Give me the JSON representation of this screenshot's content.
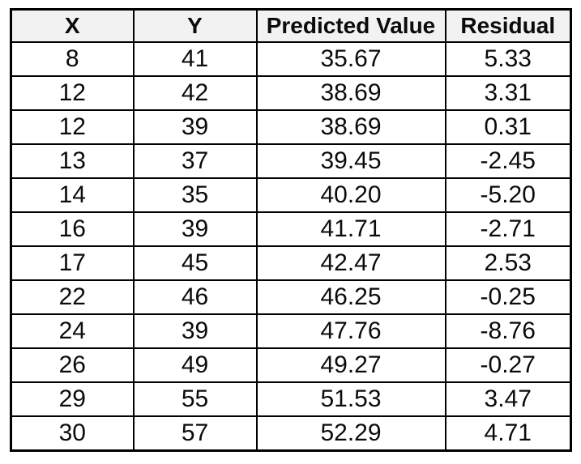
{
  "theme": {
    "header_bg": "#f2f2f2",
    "border_color": "#000000",
    "text_color": "#0b0b0b",
    "page_bg": "#ffffff"
  },
  "table": {
    "columns": [
      "X",
      "Y",
      "Predicted Value",
      "Residual"
    ],
    "rows": [
      [
        "8",
        "41",
        "35.67",
        "5.33"
      ],
      [
        "12",
        "42",
        "38.69",
        "3.31"
      ],
      [
        "12",
        "39",
        "38.69",
        "0.31"
      ],
      [
        "13",
        "37",
        "39.45",
        "-2.45"
      ],
      [
        "14",
        "35",
        "40.20",
        "-5.20"
      ],
      [
        "16",
        "39",
        "41.71",
        "-2.71"
      ],
      [
        "17",
        "45",
        "42.47",
        "2.53"
      ],
      [
        "22",
        "46",
        "46.25",
        "-0.25"
      ],
      [
        "24",
        "39",
        "47.76",
        "-8.76"
      ],
      [
        "26",
        "49",
        "49.27",
        "-0.27"
      ],
      [
        "29",
        "55",
        "51.53",
        "3.47"
      ],
      [
        "30",
        "57",
        "52.29",
        "4.71"
      ]
    ]
  },
  "chart_data": {
    "type": "table",
    "title": "",
    "columns": [
      "X",
      "Y",
      "Predicted Value",
      "Residual"
    ],
    "rows": [
      [
        8,
        41,
        35.67,
        5.33
      ],
      [
        12,
        42,
        38.69,
        3.31
      ],
      [
        12,
        39,
        38.69,
        0.31
      ],
      [
        13,
        37,
        39.45,
        -2.45
      ],
      [
        14,
        35,
        40.2,
        -5.2
      ],
      [
        16,
        39,
        41.71,
        -2.71
      ],
      [
        17,
        45,
        42.47,
        2.53
      ],
      [
        22,
        46,
        46.25,
        -0.25
      ],
      [
        24,
        39,
        47.76,
        -8.76
      ],
      [
        26,
        49,
        49.27,
        -0.27
      ],
      [
        29,
        55,
        51.53,
        3.47
      ],
      [
        30,
        57,
        52.29,
        4.71
      ]
    ]
  }
}
